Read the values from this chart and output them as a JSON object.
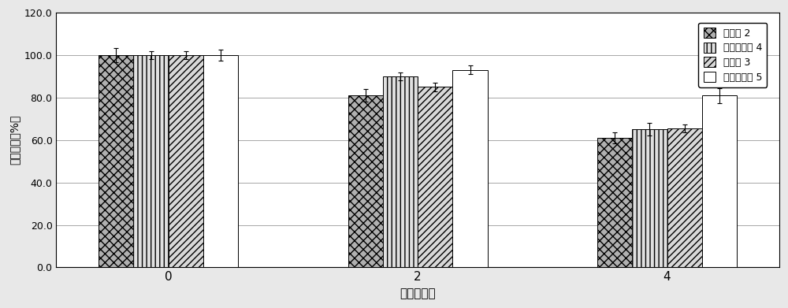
{
  "xlabel": "时间（周）",
  "ylabel": "蜀发的水（%）",
  "x_positions": [
    0,
    2,
    4
  ],
  "x_labels": [
    "0",
    "2",
    "4"
  ],
  "series": [
    {
      "name": "实施例 2",
      "values": [
        100.0,
        81.0,
        61.0
      ],
      "errors": [
        3.5,
        3.0,
        2.5
      ],
      "hatch": "xxx",
      "facecolor": "#b0b0b0",
      "edgecolor": "#000000"
    },
    {
      "name": "对比实施例 4",
      "values": [
        100.0,
        90.0,
        65.0
      ],
      "errors": [
        2.0,
        2.0,
        3.0
      ],
      "hatch": "|||",
      "facecolor": "#e0e0e0",
      "edgecolor": "#000000"
    },
    {
      "name": "实施例 3",
      "values": [
        100.0,
        85.0,
        65.5
      ],
      "errors": [
        2.0,
        2.0,
        2.0
      ],
      "hatch": "////",
      "facecolor": "#d8d8d8",
      "edgecolor": "#000000"
    },
    {
      "name": "对比实施例 5",
      "values": [
        100.0,
        93.0,
        81.0
      ],
      "errors": [
        2.5,
        2.0,
        3.5
      ],
      "hatch": "",
      "facecolor": "#ffffff",
      "edgecolor": "#000000"
    }
  ],
  "ylim": [
    0,
    120
  ],
  "yticks": [
    0.0,
    20.0,
    40.0,
    60.0,
    80.0,
    100.0,
    120.0
  ],
  "bar_width": 0.28,
  "background_color": "#e8e8e8",
  "plot_background": "#ffffff"
}
